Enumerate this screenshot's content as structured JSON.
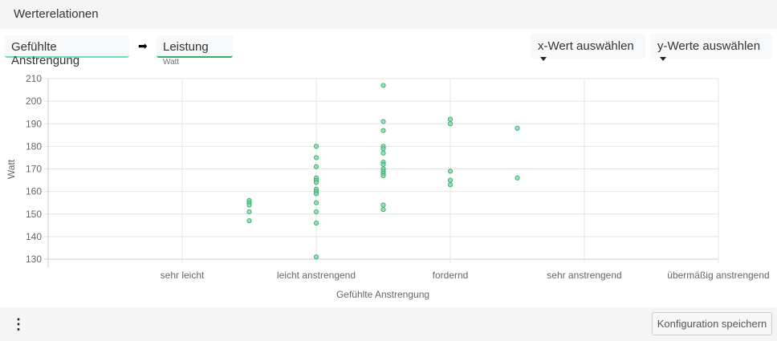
{
  "header": {
    "title": "Werterelationen"
  },
  "selection": {
    "x_chip": "Gefühlte Anstrengung",
    "arrow_icon": "arrow-right-icon",
    "y_chip": "Leistung",
    "y_chip_unit": "Watt",
    "x_select_label": "x-Wert auswählen",
    "y_select_label": "y-Werte auswählen"
  },
  "colors": {
    "point_fill": "#7dd4a8",
    "point_stroke": "#3cb371",
    "x_chip_accent": "#6fe0b0",
    "y_chip_accent": "#3aa86a",
    "grid": "#e4e4e4"
  },
  "footer": {
    "menu_icon": "kebab-icon",
    "save_label": "Konfiguration speichern"
  },
  "chart_data": {
    "type": "scatter",
    "title": "",
    "xlabel": "Gefühlte Anstrengung",
    "ylabel": "Watt",
    "categories": [
      "sehr leicht",
      "leicht anstrengend",
      "fordernd",
      "sehr anstrengend",
      "übermäßig anstrengend"
    ],
    "x_positions": [
      1,
      2,
      3,
      4,
      5
    ],
    "xlim": [
      0,
      5
    ],
    "ylim": [
      130,
      210
    ],
    "yticks": [
      130,
      140,
      150,
      160,
      170,
      180,
      190,
      200,
      210
    ],
    "grid": true,
    "legend": "none",
    "points": [
      {
        "x": 1.5,
        "y": 156
      },
      {
        "x": 1.5,
        "y": 155
      },
      {
        "x": 1.5,
        "y": 154
      },
      {
        "x": 1.5,
        "y": 151
      },
      {
        "x": 1.5,
        "y": 147
      },
      {
        "x": 2,
        "y": 180
      },
      {
        "x": 2,
        "y": 175
      },
      {
        "x": 2,
        "y": 171
      },
      {
        "x": 2,
        "y": 166
      },
      {
        "x": 2,
        "y": 165
      },
      {
        "x": 2,
        "y": 164
      },
      {
        "x": 2,
        "y": 161
      },
      {
        "x": 2,
        "y": 160
      },
      {
        "x": 2,
        "y": 159
      },
      {
        "x": 2,
        "y": 155
      },
      {
        "x": 2,
        "y": 151
      },
      {
        "x": 2,
        "y": 146
      },
      {
        "x": 2,
        "y": 131
      },
      {
        "x": 2.5,
        "y": 207
      },
      {
        "x": 2.5,
        "y": 191
      },
      {
        "x": 2.5,
        "y": 187
      },
      {
        "x": 2.5,
        "y": 180
      },
      {
        "x": 2.5,
        "y": 179
      },
      {
        "x": 2.5,
        "y": 177
      },
      {
        "x": 2.5,
        "y": 173
      },
      {
        "x": 2.5,
        "y": 172
      },
      {
        "x": 2.5,
        "y": 170
      },
      {
        "x": 2.5,
        "y": 169
      },
      {
        "x": 2.5,
        "y": 168
      },
      {
        "x": 2.5,
        "y": 167
      },
      {
        "x": 2.5,
        "y": 154
      },
      {
        "x": 2.5,
        "y": 152
      },
      {
        "x": 3,
        "y": 192
      },
      {
        "x": 3,
        "y": 190
      },
      {
        "x": 3,
        "y": 169
      },
      {
        "x": 3,
        "y": 165
      },
      {
        "x": 3,
        "y": 163
      },
      {
        "x": 3.5,
        "y": 188
      },
      {
        "x": 3.5,
        "y": 166
      }
    ]
  }
}
